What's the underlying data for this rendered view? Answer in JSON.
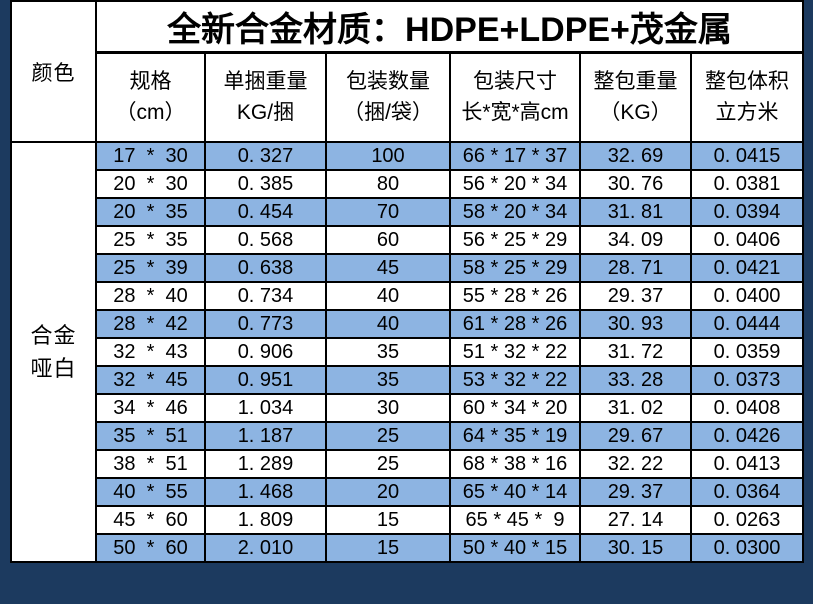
{
  "title": "全新合金材质：HDPE+LDPE+茂金属",
  "corner_header": "颜色",
  "color_label": {
    "line1": "合金",
    "line2": "哑白"
  },
  "columns": [
    {
      "line1": "规格",
      "line2": "（cm）"
    },
    {
      "line1": "单捆重量",
      "line2": "KG/捆"
    },
    {
      "line1": "包装数量",
      "line2": "（捆/袋）"
    },
    {
      "line1": "包装尺寸",
      "line2": "长*宽*高cm"
    },
    {
      "line1": "整包重量",
      "line2": "（KG）"
    },
    {
      "line1": "整包体积",
      "line2": "立方米"
    }
  ],
  "rows": [
    {
      "spec": "17  *  30",
      "bundle_weight": "0. 327",
      "qty": "100",
      "size": "66 * 17 * 37",
      "pack_weight": "32. 69",
      "volume": "0. 0415"
    },
    {
      "spec": "20  *  30",
      "bundle_weight": "0. 385",
      "qty": "80",
      "size": "56 * 20 * 34",
      "pack_weight": "30. 76",
      "volume": "0. 0381"
    },
    {
      "spec": "20  *  35",
      "bundle_weight": "0. 454",
      "qty": "70",
      "size": "58 * 20 * 34",
      "pack_weight": "31. 81",
      "volume": "0. 0394"
    },
    {
      "spec": "25  *  35",
      "bundle_weight": "0. 568",
      "qty": "60",
      "size": "56 * 25 * 29",
      "pack_weight": "34. 09",
      "volume": "0. 0406"
    },
    {
      "spec": "25  *  39",
      "bundle_weight": "0. 638",
      "qty": "45",
      "size": "58 * 25 * 29",
      "pack_weight": "28. 71",
      "volume": "0. 0421"
    },
    {
      "spec": "28  *  40",
      "bundle_weight": "0. 734",
      "qty": "40",
      "size": "55 * 28 * 26",
      "pack_weight": "29. 37",
      "volume": "0. 0400"
    },
    {
      "spec": "28  *  42",
      "bundle_weight": "0. 773",
      "qty": "40",
      "size": "61 * 28 * 26",
      "pack_weight": "30. 93",
      "volume": "0. 0444"
    },
    {
      "spec": "32  *  43",
      "bundle_weight": "0. 906",
      "qty": "35",
      "size": "51 * 32 * 22",
      "pack_weight": "31. 72",
      "volume": "0. 0359"
    },
    {
      "spec": "32  *  45",
      "bundle_weight": "0. 951",
      "qty": "35",
      "size": "53 * 32 * 22",
      "pack_weight": "33. 28",
      "volume": "0. 0373"
    },
    {
      "spec": "34  *  46",
      "bundle_weight": "1. 034",
      "qty": "30",
      "size": "60 * 34 * 20",
      "pack_weight": "31. 02",
      "volume": "0. 0408"
    },
    {
      "spec": "35  *  51",
      "bundle_weight": "1. 187",
      "qty": "25",
      "size": "64 * 35 * 19",
      "pack_weight": "29. 67",
      "volume": "0. 0426"
    },
    {
      "spec": "38  *  51",
      "bundle_weight": "1. 289",
      "qty": "25",
      "size": "68 * 38 * 16",
      "pack_weight": "32. 22",
      "volume": "0. 0413"
    },
    {
      "spec": "40  *  55",
      "bundle_weight": "1. 468",
      "qty": "20",
      "size": "65 * 40 * 14",
      "pack_weight": "29. 37",
      "volume": "0. 0364"
    },
    {
      "spec": "45  *  60",
      "bundle_weight": "1. 809",
      "qty": "15",
      "size": "65 * 45 *  9",
      "pack_weight": "27. 14",
      "volume": "0. 0263"
    },
    {
      "spec": "50  *  60",
      "bundle_weight": "2. 010",
      "qty": "15",
      "size": "50 * 40 * 15",
      "pack_weight": "30. 15",
      "volume": "0. 0300"
    }
  ],
  "colors": {
    "highlight_row_blue": "#8DB4E2",
    "frame_navy": "#1C3A5F",
    "grid_line": "#000000",
    "cell_white": "#FFFFFF"
  }
}
